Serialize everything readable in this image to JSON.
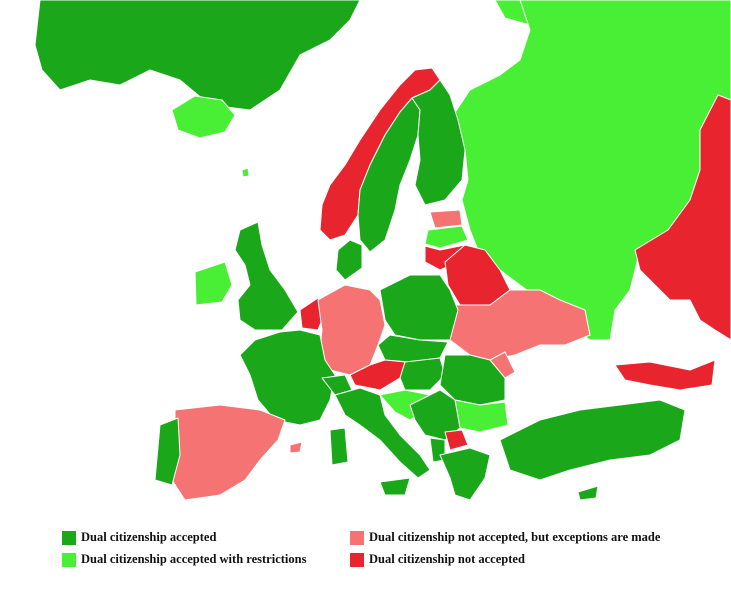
{
  "colors": {
    "accepted": "#1aa81a",
    "restricted": "#48ef35",
    "exceptions": "#f57373",
    "not_accepted": "#e8252e",
    "sea": "#ffffff",
    "border": "#ffffff"
  },
  "legend": {
    "items": [
      {
        "label": "Dual citizenship accepted",
        "color": "#1aa81a"
      },
      {
        "label": "Dual citizenship accepted with restrictions",
        "color": "#48ef35"
      },
      {
        "label": "Dual citizenship not accepted, but exceptions are made",
        "color": "#f57373"
      },
      {
        "label": "Dual citizenship not accepted",
        "color": "#e8252e"
      }
    ]
  }
}
